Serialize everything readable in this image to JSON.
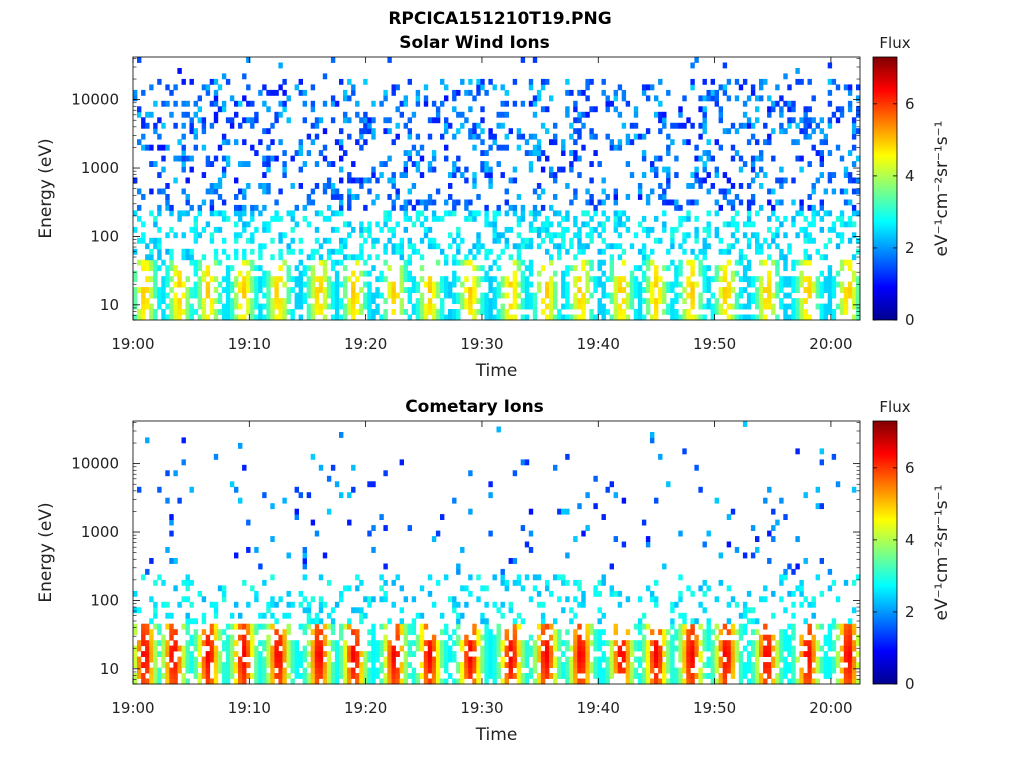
{
  "figure": {
    "filename": "RPCICA151210T19.PNG"
  },
  "colormap": {
    "name": "jet",
    "stops": [
      "#00008f",
      "#0000ff",
      "#0080ff",
      "#00ffff",
      "#80ff80",
      "#ffff00",
      "#ff8000",
      "#ff0000",
      "#800000"
    ]
  },
  "chart_data": [
    {
      "type": "heatmap",
      "title": "Solar Wind Ions",
      "xlabel": "Time",
      "ylabel": "Energy (eV)",
      "x_ticks": [
        "19:00",
        "19:10",
        "19:20",
        "19:30",
        "19:40",
        "19:50",
        "20:00"
      ],
      "x_tick_minutes": [
        0,
        10,
        20,
        30,
        40,
        50,
        60
      ],
      "xlim_minutes_after_1900": [
        0,
        62.5
      ],
      "y_scale": "log",
      "y_ticks": [
        "10",
        "100",
        "1000",
        "10000"
      ],
      "y_tick_values": [
        10,
        100,
        1000,
        10000
      ],
      "ylim": [
        6,
        42000
      ],
      "colorbar": {
        "label": "Flux",
        "unit": "eV⁻¹cm⁻²sr⁻¹s⁻¹",
        "range": [
          0,
          7.3
        ],
        "ticks": [
          "0",
          "2",
          "4",
          "6"
        ],
        "tick_values": [
          0,
          2,
          4,
          6
        ]
      },
      "description_peaks_minutes": [
        1,
        4,
        6.5,
        9.5,
        12.5,
        16,
        19,
        22.5,
        25.5,
        29,
        32.5,
        35.5,
        38.5,
        42,
        45,
        48,
        51,
        54.5,
        58,
        61.5
      ],
      "peak_flux": 5.0,
      "background": "sparse counts 1.0–2.5 at 100–20000 eV"
    },
    {
      "type": "heatmap",
      "title": "Cometary Ions",
      "xlabel": "Time",
      "ylabel": "Energy (eV)",
      "x_ticks": [
        "19:00",
        "19:10",
        "19:20",
        "19:30",
        "19:40",
        "19:50",
        "20:00"
      ],
      "x_tick_minutes": [
        0,
        10,
        20,
        30,
        40,
        50,
        60
      ],
      "xlim_minutes_after_1900": [
        0,
        62.5
      ],
      "y_scale": "log",
      "y_ticks": [
        "10",
        "100",
        "1000",
        "10000"
      ],
      "y_tick_values": [
        10,
        100,
        1000,
        10000
      ],
      "ylim": [
        6,
        42000
      ],
      "colorbar": {
        "label": "Flux",
        "unit": "eV⁻¹cm⁻²sr⁻¹s⁻¹",
        "range": [
          0,
          7.3
        ],
        "ticks": [
          "0",
          "2",
          "4",
          "6"
        ],
        "tick_values": [
          0,
          2,
          4,
          6
        ]
      },
      "description_peaks_minutes": [
        1,
        3.5,
        6.5,
        9.5,
        12.5,
        16,
        19,
        22.5,
        25.5,
        29,
        32.5,
        35.5,
        38.5,
        42,
        45,
        48,
        51,
        54.5,
        58,
        61.5
      ],
      "peak_flux": 6.5,
      "background": "sparse counts 1.0–2.5 at 100–15000 eV"
    }
  ]
}
